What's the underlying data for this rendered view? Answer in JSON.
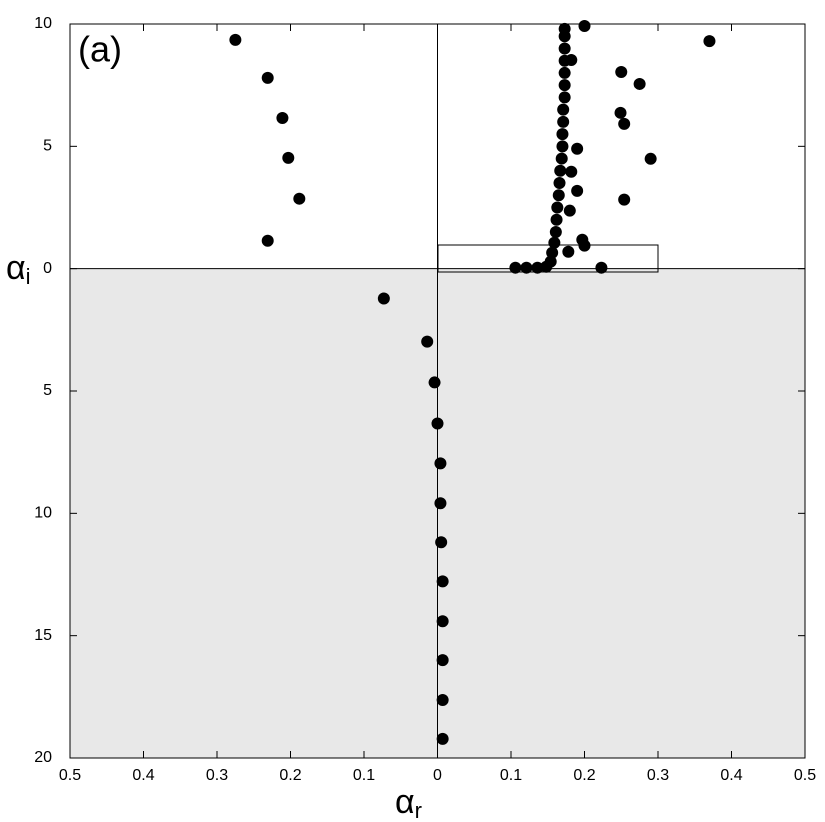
{
  "chart_data": {
    "type": "scatter",
    "panel_label": "(a)",
    "xlabel": "α",
    "xlabel_sub": "r",
    "ylabel": "α",
    "ylabel_sub": "i",
    "color": "#000000",
    "xlim": [
      -0.5,
      0.5
    ],
    "ylim": [
      -20,
      10
    ],
    "xticks": [
      {
        "value": -0.5,
        "label": "0.5"
      },
      {
        "value": -0.4,
        "label": "0.4"
      },
      {
        "value": -0.3,
        "label": "0.3"
      },
      {
        "value": -0.2,
        "label": "0.2"
      },
      {
        "value": -0.1,
        "label": "0.1"
      },
      0,
      0.1,
      0.2,
      0.3,
      0.4,
      0.5
    ],
    "yticks": [
      {
        "value": -20,
        "label": "20"
      },
      {
        "value": -15,
        "label": "15"
      },
      {
        "value": -10,
        "label": "10"
      },
      {
        "value": -5,
        "label": "5"
      },
      0,
      5,
      10
    ],
    "x": [
      -0.275,
      -0.231,
      -0.211,
      -0.203,
      -0.188,
      -0.231,
      0.2,
      0.37,
      0.25,
      0.275,
      0.249,
      0.254,
      0.19,
      0.29,
      0.19,
      0.254,
      0.197,
      0.2,
      0.223,
      0.106,
      0.121,
      0.136,
      0.148,
      0.154,
      0.156,
      0.159,
      0.161,
      0.162,
      0.163,
      0.165,
      0.166,
      0.167,
      0.169,
      0.17,
      0.17,
      0.171,
      0.171,
      0.173,
      0.173,
      0.173,
      0.173,
      0.173,
      0.173,
      0.173,
      0.18,
      0.182,
      0.182,
      0.178,
      -0.073,
      -0.014,
      -0.004,
      0.0,
      0.004,
      0.004,
      0.005,
      0.007,
      0.007,
      0.007,
      0.007,
      0.007
    ],
    "values": [
      9.35,
      7.8,
      6.16,
      4.53,
      2.86,
      1.14,
      9.92,
      9.3,
      8.04,
      7.55,
      6.37,
      5.92,
      4.9,
      4.49,
      3.18,
      2.82,
      1.18,
      0.94,
      0.04,
      0.04,
      0.04,
      0.04,
      0.08,
      0.29,
      0.65,
      1.06,
      1.5,
      2.0,
      2.5,
      3.0,
      3.5,
      4.0,
      4.5,
      5.0,
      5.5,
      6.0,
      6.5,
      7.0,
      7.5,
      8.0,
      8.5,
      9.0,
      9.5,
      9.8,
      2.37,
      3.96,
      8.53,
      0.69,
      -1.22,
      -2.98,
      -4.65,
      -6.33,
      -7.96,
      -9.59,
      -11.18,
      -12.78,
      -14.41,
      -16.0,
      -17.63,
      -19.22
    ]
  }
}
